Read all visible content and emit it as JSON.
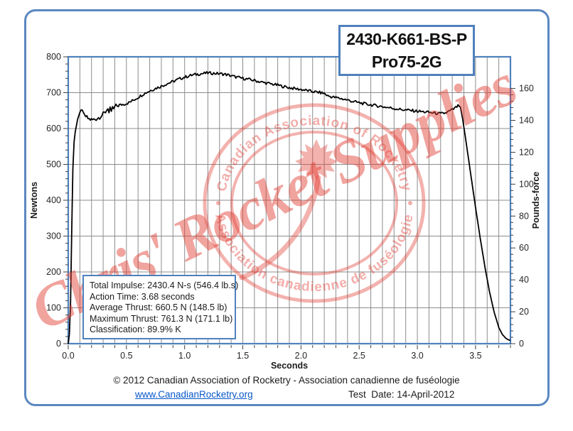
{
  "title_box": {
    "line1": "2430-K661-BS-P",
    "line2": "Pro75-2G"
  },
  "info_box": {
    "lines": [
      "Total Impulse: 2430.4 N-s (546.4 lb.s)",
      "Action Time: 3.68 seconds",
      "Average Thrust: 660.5 N (148.5 lb)",
      "Maximum Thrust: 761.3 N (171.1 lb)",
      "Classification: 89.9% K"
    ]
  },
  "watermarks": {
    "supplier_text": "Chris' Rocket Supplies",
    "logo_top_text": "Canadian Association of Rocketry",
    "logo_bottom_text": "Association canadienne de fuséologie",
    "separator": "·",
    "color_base": "#e23e34"
  },
  "footer": {
    "copyright": "© 2012 Canadian Association of Rocketry - Association canadienne de fuséologie",
    "link": "www.CanadianRocketry.org",
    "test_date": "Test  Date: 14-April-2012"
  },
  "colors": {
    "frame_blue": "#4f81bd",
    "outer_border_blue": "#5b87c0",
    "grid_gray": "#8c8c8c",
    "curve_black": "#000000",
    "tick_text": "#262626",
    "link_blue": "#0a58c8",
    "watermark_pink": "rgba(226,62,52,0.45)"
  },
  "chart_data": {
    "type": "line",
    "title": "",
    "xlabel": "Seconds",
    "ylabel_left": "Newtons",
    "ylabel_right": "Pounds-force",
    "xlim": [
      0,
      3.8
    ],
    "ylim_left": [
      0,
      800
    ],
    "right_axis_unit": "pounds-force",
    "right_axis_labels_max": 160,
    "newtons_per_lbf": 4.44822,
    "x_major_step": 0.5,
    "x_minor_step": 0.1,
    "y_major_step": 100,
    "y_minor_step": 20,
    "right_major_step": 20,
    "right_minor_step": 4,
    "grid": true,
    "legend": "none",
    "series": [
      {
        "name": "thrust-curve",
        "points_t_N": [
          [
            0.0,
            0
          ],
          [
            0.015,
            40
          ],
          [
            0.025,
            200
          ],
          [
            0.035,
            430
          ],
          [
            0.045,
            545
          ],
          [
            0.055,
            580
          ],
          [
            0.065,
            600
          ],
          [
            0.08,
            625
          ],
          [
            0.1,
            645
          ],
          [
            0.115,
            655
          ],
          [
            0.13,
            645
          ],
          [
            0.15,
            633
          ],
          [
            0.18,
            626
          ],
          [
            0.21,
            624
          ],
          [
            0.24,
            627
          ],
          [
            0.27,
            632
          ],
          [
            0.3,
            640
          ],
          [
            0.325,
            648
          ],
          [
            0.34,
            655
          ],
          [
            0.35,
            644
          ],
          [
            0.36,
            660
          ],
          [
            0.37,
            648
          ],
          [
            0.38,
            661
          ],
          [
            0.39,
            655
          ],
          [
            0.4,
            662
          ],
          [
            0.44,
            665
          ],
          [
            0.48,
            668
          ],
          [
            0.52,
            672
          ],
          [
            0.56,
            679
          ],
          [
            0.6,
            687
          ],
          [
            0.65,
            697
          ],
          [
            0.7,
            705
          ],
          [
            0.75,
            712
          ],
          [
            0.8,
            718
          ],
          [
            0.85,
            725
          ],
          [
            0.9,
            731
          ],
          [
            0.95,
            738
          ],
          [
            1.0,
            743
          ],
          [
            1.05,
            748
          ],
          [
            1.1,
            751
          ],
          [
            1.15,
            753
          ],
          [
            1.2,
            755
          ],
          [
            1.25,
            754
          ],
          [
            1.3,
            753
          ],
          [
            1.35,
            751
          ],
          [
            1.4,
            747
          ],
          [
            1.45,
            743
          ],
          [
            1.5,
            740
          ],
          [
            1.55,
            737
          ],
          [
            1.6,
            734
          ],
          [
            1.65,
            730
          ],
          [
            1.7,
            727
          ],
          [
            1.75,
            724
          ],
          [
            1.8,
            721
          ],
          [
            1.85,
            717
          ],
          [
            1.9,
            714
          ],
          [
            1.95,
            711
          ],
          [
            2.0,
            709
          ],
          [
            2.05,
            706
          ],
          [
            2.1,
            703
          ],
          [
            2.15,
            701
          ],
          [
            2.2,
            698
          ],
          [
            2.23,
            691
          ],
          [
            2.27,
            688
          ],
          [
            2.32,
            685
          ],
          [
            2.38,
            681
          ],
          [
            2.44,
            676
          ],
          [
            2.5,
            672
          ],
          [
            2.56,
            668
          ],
          [
            2.62,
            665
          ],
          [
            2.68,
            662
          ],
          [
            2.74,
            659
          ],
          [
            2.8,
            656
          ],
          [
            2.86,
            653
          ],
          [
            2.92,
            651
          ],
          [
            2.98,
            649
          ],
          [
            3.04,
            647
          ],
          [
            3.1,
            645
          ],
          [
            3.15,
            643
          ],
          [
            3.2,
            641
          ],
          [
            3.24,
            643
          ],
          [
            3.28,
            649
          ],
          [
            3.32,
            656
          ],
          [
            3.35,
            663
          ],
          [
            3.37,
            660
          ],
          [
            3.39,
            625
          ],
          [
            3.42,
            560
          ],
          [
            3.46,
            470
          ],
          [
            3.5,
            380
          ],
          [
            3.54,
            295
          ],
          [
            3.58,
            215
          ],
          [
            3.62,
            145
          ],
          [
            3.66,
            88
          ],
          [
            3.7,
            45
          ],
          [
            3.73,
            26
          ],
          [
            3.76,
            15
          ],
          [
            3.78,
            11
          ],
          [
            3.8,
            9
          ]
        ]
      }
    ]
  }
}
